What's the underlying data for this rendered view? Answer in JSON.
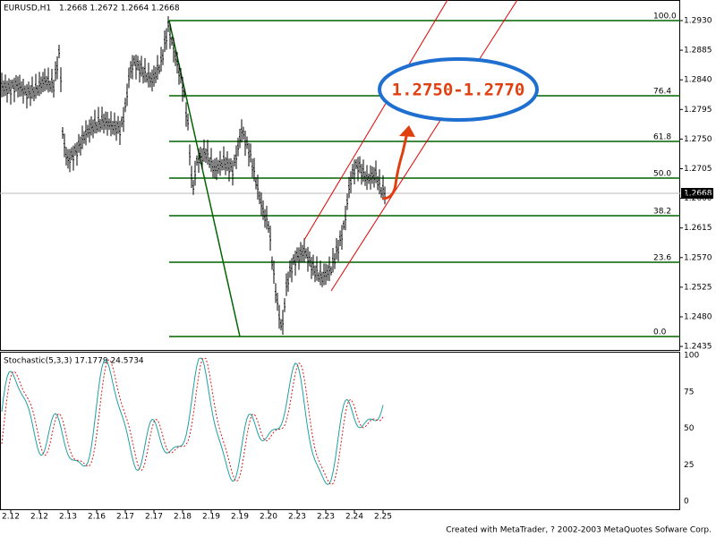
{
  "header": {
    "symbol": "EURUSD,H1",
    "quote": "1.2668 1.2672 1.2664 1.2668"
  },
  "price_axis": {
    "labels": [
      "1.2930",
      "1.2885",
      "1.2840",
      "1.2795",
      "1.2750",
      "1.2705",
      "1.2660",
      "1.2615",
      "1.2570",
      "1.2525",
      "1.2480",
      "1.2435"
    ],
    "current": "1.2668"
  },
  "fibonacci": {
    "levels": [
      "100.0",
      "76.4",
      "61.8",
      "50.0",
      "38.2",
      "23.6",
      "0.0"
    ]
  },
  "annotation": "1.2750-1.2770",
  "stochastic": {
    "title": "Stochastic(5,3,3) 17.1779 24.5734",
    "labels": [
      "100",
      "75",
      "50",
      "25",
      "0"
    ]
  },
  "dates": [
    "2.12",
    "2.12",
    "2.13",
    "2.16",
    "2.17",
    "2.17",
    "2.18",
    "2.19",
    "2.19",
    "2.20",
    "2.23",
    "2.23",
    "2.24",
    "2.25"
  ],
  "footer": "Created with MetaTrader, ? 2002-2003 MetaQuotes Sofware Corp."
}
